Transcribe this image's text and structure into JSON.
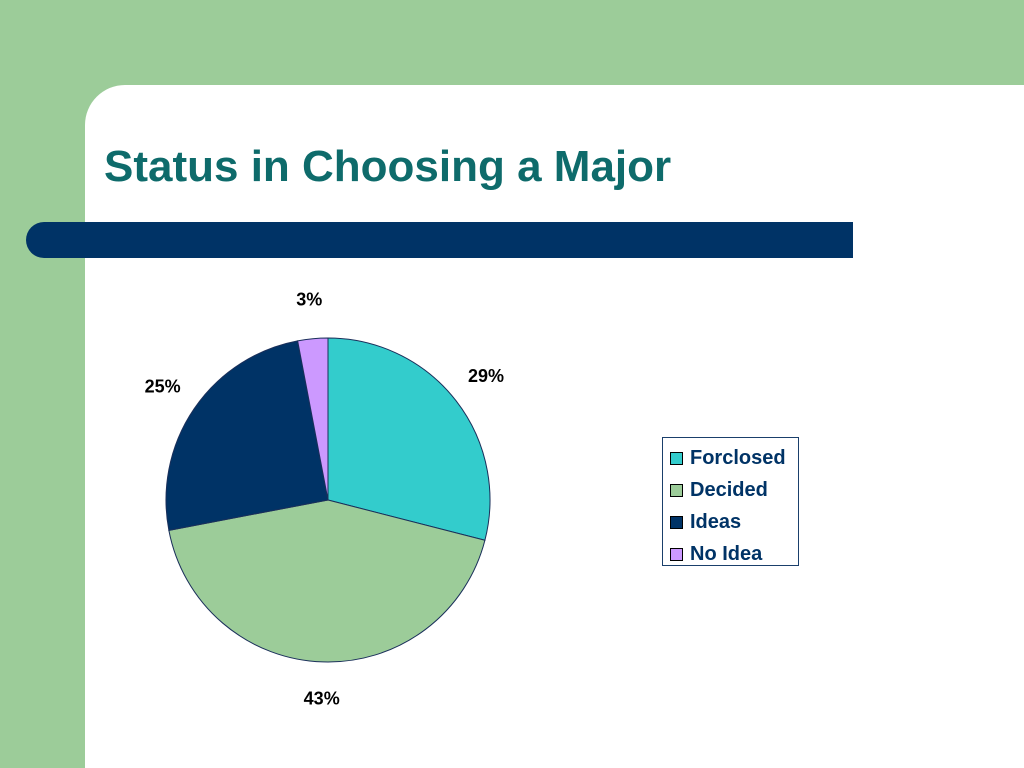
{
  "slide": {
    "title": "Status in Choosing a Major"
  },
  "colors": {
    "background_green": "#9ccc99",
    "title_teal": "#0e6b6b",
    "rule_navy": "#003366"
  },
  "chart_data": {
    "type": "pie",
    "title": "",
    "categories": [
      "Forclosed",
      "Decided",
      "Ideas",
      "No Idea"
    ],
    "values": [
      29,
      43,
      25,
      3
    ],
    "labels": [
      "29%",
      "43%",
      "25%",
      "3%"
    ],
    "colors": [
      "#33cccc",
      "#9ccc99",
      "#003366",
      "#cc99ff"
    ],
    "start_angle": "12 o'clock",
    "direction": "clockwise",
    "legend": {
      "position": "right",
      "entries": [
        "Forclosed",
        "Decided",
        "Ideas",
        "No Idea"
      ]
    }
  }
}
